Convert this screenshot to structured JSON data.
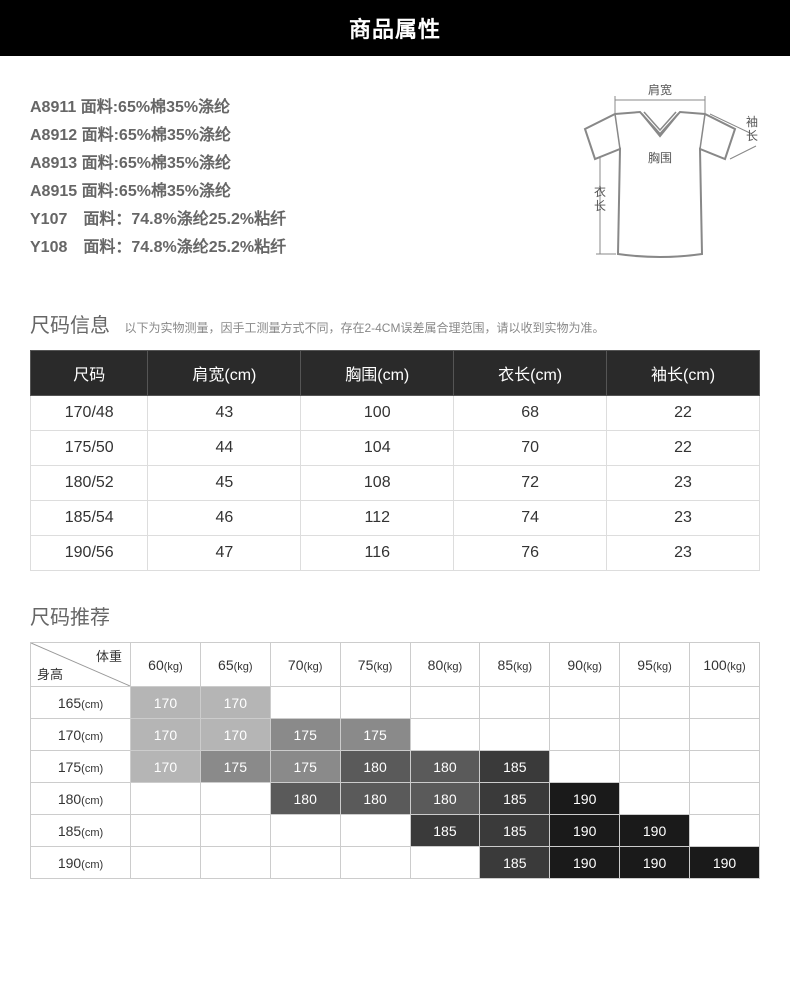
{
  "header": {
    "title": "商品属性"
  },
  "fabric": {
    "lines": [
      "A8911 面料:65%棉35%涤纶",
      "A8912 面料:65%棉35%涤纶",
      "A8913 面料:65%棉35%涤纶",
      "A8915 面料:65%棉35%涤纶",
      "Y107 面料：74.8%涤纶25.2%粘纤",
      "Y108 面料：74.8%涤纶25.2%粘纤"
    ]
  },
  "diagram": {
    "labels": {
      "shoulder": "肩宽",
      "chest": "胸围",
      "length": "衣长",
      "sleeve": "袖长"
    },
    "stroke": "#888888",
    "fill": "#ffffff",
    "label_fontsize": 12,
    "label_color": "#555555"
  },
  "size_info": {
    "title": "尺码信息",
    "note": "以下为实物测量，因手工测量方式不同，存在2-4CM误差属合理范围，请以收到实物为准。",
    "columns": [
      "尺码",
      "肩宽(cm)",
      "胸围(cm)",
      "衣长(cm)",
      "袖长(cm)"
    ],
    "rows": [
      [
        "170/48",
        "43",
        "100",
        "68",
        "22"
      ],
      [
        "175/50",
        "44",
        "104",
        "70",
        "22"
      ],
      [
        "180/52",
        "45",
        "108",
        "72",
        "23"
      ],
      [
        "185/54",
        "46",
        "112",
        "74",
        "23"
      ],
      [
        "190/56",
        "47",
        "116",
        "76",
        "23"
      ]
    ],
    "header_bg": "#2a2a2a",
    "header_fg": "#ffffff",
    "cell_bg": "#ffffff",
    "cell_fg": "#333333",
    "border_color": "#dddddd",
    "fontsize": 16
  },
  "recommend": {
    "title": "尺码推荐",
    "corner": {
      "weight_label": "体重",
      "height_label": "身高"
    },
    "weights": [
      "60",
      "65",
      "70",
      "75",
      "80",
      "85",
      "90",
      "95",
      "100"
    ],
    "weight_unit": "(kg)",
    "heights": [
      "165",
      "170",
      "175",
      "180",
      "185",
      "190"
    ],
    "height_unit": "(cm)",
    "grid": [
      [
        "170",
        "170",
        "",
        "",
        "",
        "",
        "",
        "",
        ""
      ],
      [
        "170",
        "170",
        "175",
        "175",
        "",
        "",
        "",
        "",
        ""
      ],
      [
        "170",
        "175",
        "175",
        "180",
        "180",
        "185",
        "",
        "",
        ""
      ],
      [
        "",
        "",
        "180",
        "180",
        "180",
        "185",
        "190",
        "",
        ""
      ],
      [
        "",
        "",
        "",
        "",
        "185",
        "185",
        "190",
        "190",
        ""
      ],
      [
        "",
        "",
        "",
        "",
        "",
        "185",
        "190",
        "190",
        "190"
      ]
    ],
    "colors": {
      "170": "#b5b5b5",
      "175": "#8a8a8a",
      "180": "#5a5a5a",
      "185": "#3a3a3a",
      "190": "#1a1a1a"
    },
    "cell_fg": "#ffffff",
    "empty_bg": "#ffffff",
    "fontsize": 14
  }
}
